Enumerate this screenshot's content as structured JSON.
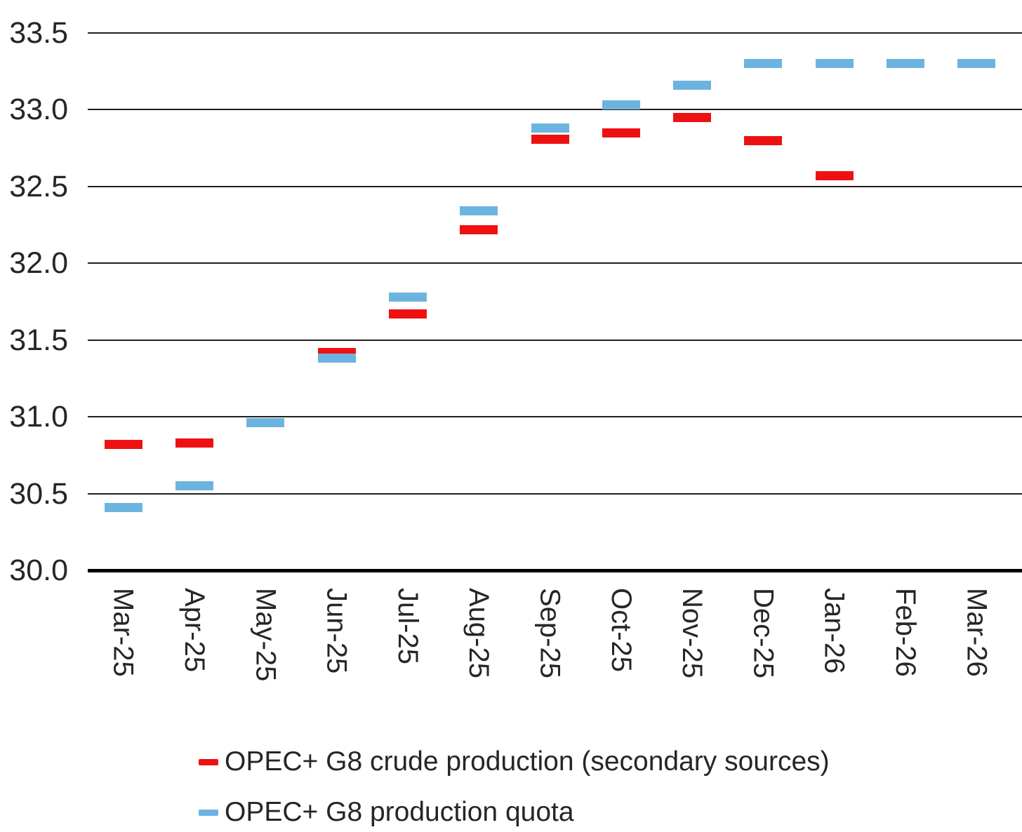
{
  "chart_data": {
    "type": "bar",
    "subtype": "dash-marks",
    "title": "",
    "categories": [
      "Mar-25",
      "Apr-25",
      "May-25",
      "Jun-25",
      "Jul-25",
      "Aug-25",
      "Sep-25",
      "Oct-25",
      "Nov-25",
      "Dec-25",
      "Jan-26",
      "Feb-26",
      "Mar-26"
    ],
    "series": [
      {
        "key": "production",
        "name": "OPEC+ G8 crude production (secondary sources)",
        "color": "#ee1111",
        "values": [
          30.82,
          30.83,
          30.96,
          31.42,
          31.67,
          32.22,
          32.81,
          32.85,
          32.95,
          32.8,
          32.57,
          null,
          null
        ]
      },
      {
        "key": "quota",
        "name": "OPEC+ G8 production quota",
        "color": "#6cb4e0",
        "values": [
          30.41,
          30.55,
          30.96,
          31.38,
          31.78,
          32.34,
          32.88,
          33.03,
          33.16,
          33.3,
          33.3,
          33.3,
          33.3
        ]
      }
    ],
    "xlabel": "",
    "ylabel": "",
    "ylim": [
      30.0,
      33.5
    ],
    "ytick_labels": [
      "30.0",
      "30.5",
      "31.0",
      "31.5",
      "32.0",
      "32.5",
      "33.0",
      "33.5"
    ],
    "grid": true,
    "legend_position": "bottom"
  },
  "colors": {
    "gridline": "#1f1f1f",
    "axis": "#000000",
    "text": "#262626",
    "background": "#ffffff"
  }
}
